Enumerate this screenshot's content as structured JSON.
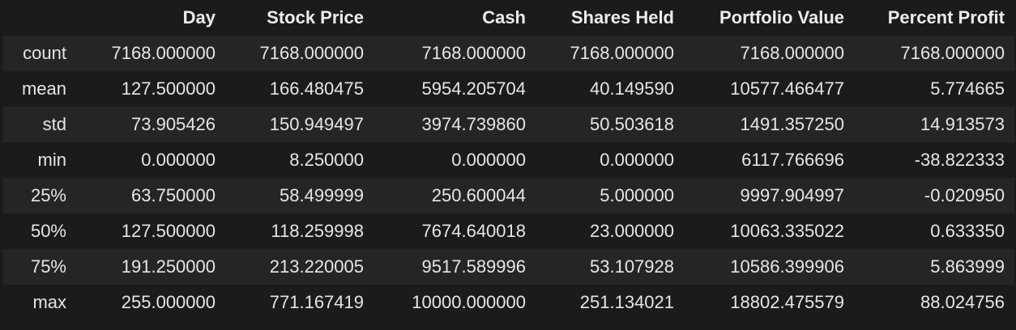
{
  "table": {
    "index_header": "",
    "columns": [
      "Day",
      "Stock Price",
      "Cash",
      "Shares Held",
      "Portfolio Value",
      "Percent Profit"
    ],
    "rows": [
      {
        "label": "count",
        "values": [
          "7168.000000",
          "7168.000000",
          "7168.000000",
          "7168.000000",
          "7168.000000",
          "7168.000000"
        ]
      },
      {
        "label": "mean",
        "values": [
          "127.500000",
          "166.480475",
          "5954.205704",
          "40.149590",
          "10577.466477",
          "5.774665"
        ]
      },
      {
        "label": "std",
        "values": [
          "73.905426",
          "150.949497",
          "3974.739860",
          "50.503618",
          "1491.357250",
          "14.913573"
        ]
      },
      {
        "label": "min",
        "values": [
          "0.000000",
          "8.250000",
          "0.000000",
          "0.000000",
          "6117.766696",
          "-38.822333"
        ]
      },
      {
        "label": "25%",
        "values": [
          "63.750000",
          "58.499999",
          "250.600044",
          "5.000000",
          "9997.904997",
          "-0.020950"
        ]
      },
      {
        "label": "50%",
        "values": [
          "127.500000",
          "118.259998",
          "7674.640018",
          "23.000000",
          "10063.335022",
          "0.633350"
        ]
      },
      {
        "label": "75%",
        "values": [
          "191.250000",
          "213.220005",
          "9517.589996",
          "53.107928",
          "10586.399906",
          "5.863999"
        ]
      },
      {
        "label": "max",
        "values": [
          "255.000000",
          "771.167419",
          "10000.000000",
          "251.134021",
          "18802.475579",
          "88.024756"
        ]
      }
    ]
  },
  "colors": {
    "background": "#1b1b1c",
    "row_stripe": "#252526",
    "text": "#e6e6e6"
  }
}
